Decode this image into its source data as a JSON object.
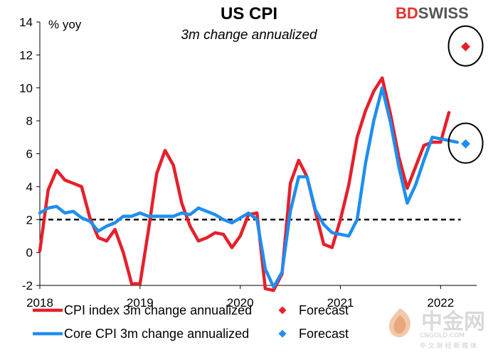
{
  "brand": {
    "bd": "BD",
    "rest": "SWISS"
  },
  "watermark": {
    "main": "中金网",
    "url": "CNGOLD.COM",
    "sub": "中 文 财 经 新 媒 体"
  },
  "colors": {
    "cpi": "#e5202a",
    "core": "#1e8ef0",
    "reference": "#000000"
  },
  "chart_data": {
    "type": "line",
    "title": "US CPI",
    "subtitle": "3m change annualized",
    "ylabel": "% yoy",
    "ylim": [
      -2,
      14
    ],
    "yticks": [
      -2,
      0,
      2,
      4,
      6,
      8,
      10,
      12,
      14
    ],
    "xlim": [
      2018.0,
      2022.36
    ],
    "xticks": [
      {
        "value": 2018,
        "label": "2018"
      },
      {
        "value": 2019,
        "label": "2019"
      },
      {
        "value": 2020,
        "label": "2020"
      },
      {
        "value": 2021,
        "label": "2021"
      },
      {
        "value": 2022,
        "label": "2022"
      }
    ],
    "reference_line": {
      "y": 2,
      "style": "dashed"
    },
    "legend": [
      {
        "label": "CPI index 3m change annualized",
        "kind": "line",
        "color": "#e5202a"
      },
      {
        "label": "Forecast",
        "kind": "marker",
        "color": "#e5202a"
      },
      {
        "label": "Core CPI 3m change annualized",
        "kind": "line",
        "color": "#1e8ef0"
      },
      {
        "label": "Forecast",
        "kind": "marker",
        "color": "#1e8ef0"
      }
    ],
    "series": [
      {
        "name": "CPI index 3m change annualized",
        "color": "#e5202a",
        "x": [
          2018.0,
          2018.083,
          2018.167,
          2018.25,
          2018.333,
          2018.417,
          2018.5,
          2018.583,
          2018.667,
          2018.75,
          2018.833,
          2018.917,
          2019.0,
          2019.083,
          2019.167,
          2019.25,
          2019.333,
          2019.417,
          2019.5,
          2019.583,
          2019.667,
          2019.75,
          2019.833,
          2019.917,
          2020.0,
          2020.083,
          2020.167,
          2020.25,
          2020.333,
          2020.417,
          2020.5,
          2020.583,
          2020.667,
          2020.75,
          2020.833,
          2020.917,
          2021.0,
          2021.083,
          2021.167,
          2021.25,
          2021.333,
          2021.417,
          2021.5,
          2021.583,
          2021.667,
          2021.75,
          2021.833,
          2021.917,
          2022.0,
          2022.083
        ],
        "y": [
          0.1,
          3.8,
          5.0,
          4.4,
          4.2,
          4.0,
          2.1,
          0.9,
          0.7,
          1.4,
          0.0,
          -1.9,
          -1.9,
          1.3,
          4.8,
          6.2,
          5.3,
          3.0,
          1.6,
          0.7,
          0.9,
          1.2,
          1.1,
          0.3,
          1.0,
          2.3,
          2.4,
          -2.2,
          -2.3,
          -1.3,
          4.2,
          5.6,
          4.6,
          2.5,
          0.5,
          0.3,
          2.0,
          4.1,
          7.0,
          8.6,
          9.8,
          10.6,
          8.4,
          5.8,
          3.9,
          5.2,
          6.5,
          6.7,
          6.7,
          8.5
        ]
      },
      {
        "name": "Core CPI 3m change annualized",
        "color": "#1e8ef0",
        "x": [
          2018.0,
          2018.083,
          2018.167,
          2018.25,
          2018.333,
          2018.417,
          2018.5,
          2018.583,
          2018.667,
          2018.75,
          2018.833,
          2018.917,
          2019.0,
          2019.083,
          2019.167,
          2019.25,
          2019.333,
          2019.417,
          2019.5,
          2019.583,
          2019.667,
          2019.75,
          2019.833,
          2019.917,
          2020.0,
          2020.083,
          2020.167,
          2020.25,
          2020.333,
          2020.417,
          2020.5,
          2020.583,
          2020.667,
          2020.75,
          2020.833,
          2020.917,
          2021.0,
          2021.083,
          2021.167,
          2021.25,
          2021.333,
          2021.417,
          2021.5,
          2021.583,
          2021.667,
          2021.75,
          2021.833,
          2021.917,
          2022.0,
          2022.083,
          2022.167
        ],
        "y": [
          2.4,
          2.7,
          2.8,
          2.4,
          2.5,
          2.1,
          1.9,
          1.3,
          1.6,
          1.8,
          2.2,
          2.2,
          2.4,
          2.2,
          2.2,
          2.2,
          2.2,
          2.4,
          2.3,
          2.7,
          2.5,
          2.3,
          2.0,
          1.8,
          2.1,
          2.4,
          2.0,
          -1.0,
          -2.1,
          -1.2,
          2.5,
          4.6,
          4.6,
          2.6,
          1.7,
          1.2,
          1.1,
          1.0,
          2.0,
          5.4,
          8.0,
          10.0,
          7.9,
          5.2,
          3.0,
          4.1,
          5.6,
          7.0,
          6.9,
          6.8,
          6.7
        ]
      }
    ],
    "forecasts": [
      {
        "series": "CPI index 3m change annualized",
        "x": 2022.25,
        "y": 12.5,
        "color": "#e5202a",
        "circled": true
      },
      {
        "series": "Core CPI 3m change annualized",
        "x": 2022.25,
        "y": 6.6,
        "color": "#1e8ef0",
        "circled": true
      }
    ]
  }
}
